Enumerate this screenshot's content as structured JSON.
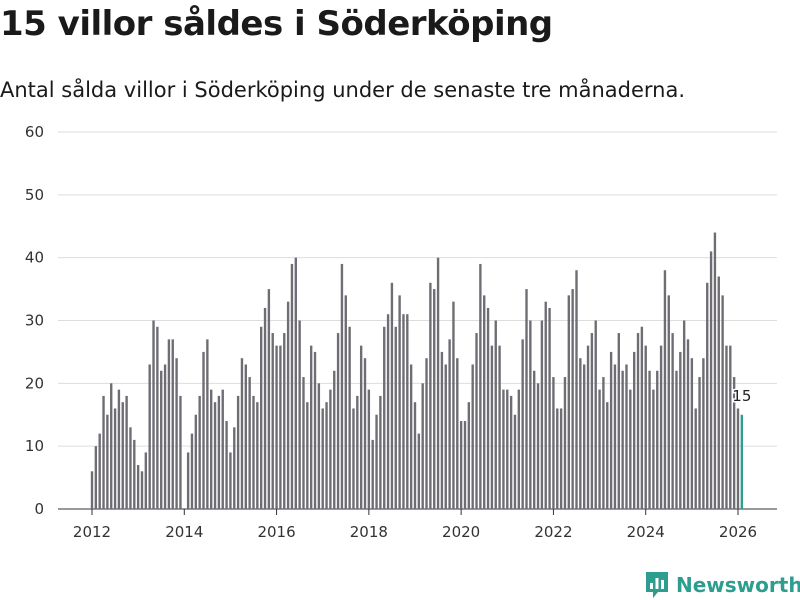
{
  "title": "15 villor såldes i Söderköping",
  "subtitle": "Antal sålda villor i Söderköping under de senaste tre månaderna.",
  "brand": "Newsworthy",
  "colors": {
    "bar": "#6e6d73",
    "highlight": "#2c9d8e",
    "grid": "#dddddd",
    "brand": "#2c9d8e"
  },
  "chart_data": {
    "type": "bar",
    "title": "15 villor såldes i Söderköping",
    "xlabel": "",
    "ylabel": "",
    "ylim": [
      0,
      60
    ],
    "yticks": [
      "0",
      "10",
      "20",
      "30",
      "40",
      "50",
      "60"
    ],
    "xticks": [
      {
        "label": "2012",
        "x": 2012
      },
      {
        "label": "2014",
        "x": 2014
      },
      {
        "label": "2016",
        "x": 2016
      },
      {
        "label": "2018",
        "x": 2018
      },
      {
        "label": "2020",
        "x": 2020
      },
      {
        "label": "2022",
        "x": 2022
      },
      {
        "label": "2024",
        "x": 2024
      },
      {
        "label": "2026",
        "x": 2026
      }
    ],
    "start": [
      2012,
      1
    ],
    "interval": "month",
    "values": [
      6,
      10,
      12,
      18,
      15,
      20,
      16,
      19,
      17,
      18,
      13,
      11,
      7,
      6,
      9,
      23,
      30,
      29,
      22,
      23,
      27,
      27,
      24,
      18,
      0,
      9,
      12,
      15,
      18,
      25,
      27,
      19,
      17,
      18,
      19,
      14,
      9,
      13,
      18,
      24,
      23,
      21,
      18,
      17,
      29,
      32,
      35,
      28,
      26,
      26,
      28,
      33,
      39,
      40,
      30,
      21,
      17,
      26,
      25,
      20,
      16,
      17,
      19,
      22,
      28,
      39,
      34,
      29,
      16,
      18,
      26,
      24,
      19,
      11,
      15,
      18,
      29,
      31,
      36,
      29,
      34,
      31,
      31,
      23,
      17,
      12,
      20,
      24,
      36,
      35,
      40,
      25,
      23,
      27,
      33,
      24,
      14,
      14,
      17,
      23,
      28,
      39,
      34,
      32,
      26,
      30,
      26,
      19,
      19,
      18,
      15,
      19,
      27,
      35,
      30,
      22,
      20,
      30,
      33,
      32,
      21,
      16,
      16,
      21,
      34,
      35,
      38,
      24,
      23,
      26,
      28,
      30,
      19,
      21,
      17,
      25,
      23,
      28,
      22,
      23,
      19,
      25,
      28,
      29,
      26,
      22,
      19,
      22,
      26,
      38,
      34,
      28,
      22,
      25,
      30,
      27,
      24,
      16,
      21,
      24,
      36,
      41,
      44,
      37,
      34,
      26,
      26,
      21,
      16,
      15
    ],
    "highlight": {
      "index": 169,
      "value": 15,
      "label": "15"
    }
  }
}
